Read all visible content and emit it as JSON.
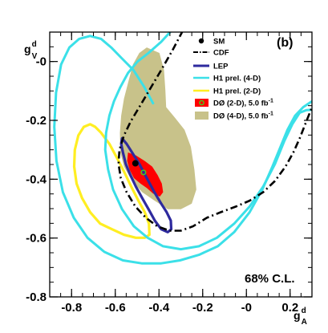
{
  "chart_data": {
    "type": "scatter",
    "panel_label": "(b)",
    "confidence_label": "68% C.L.",
    "x_axis": {
      "label": "g",
      "label_sup": "d",
      "label_sub": "A",
      "range": [
        -0.9,
        0.3
      ],
      "ticks": [
        -0.8,
        -0.6,
        -0.4,
        -0.2,
        0,
        0.2
      ],
      "tick_labels": [
        "-0.8",
        "-0.6",
        "-0.4",
        "-0.2",
        "-0",
        "0.2"
      ]
    },
    "y_axis": {
      "label": "g",
      "label_sup": "d",
      "label_sub": "V",
      "range": [
        -0.8,
        0.1
      ],
      "ticks": [
        -0.8,
        -0.6,
        -0.4,
        -0.2,
        0
      ],
      "tick_labels": [
        "-0.8",
        "-0.6",
        "-0.4",
        "-0.2",
        "-0"
      ]
    },
    "legend": {
      "placement": "top-right",
      "items": [
        {
          "key": "sm",
          "label": "SM",
          "superscript": ""
        },
        {
          "key": "cdf",
          "label": "CDF",
          "superscript": ""
        },
        {
          "key": "lep",
          "label": "LEP",
          "superscript": ""
        },
        {
          "key": "h1_4d",
          "label": "H1 prel. (4-D)",
          "superscript": ""
        },
        {
          "key": "h1_2d",
          "label": "H1 prel. (2-D)",
          "superscript": ""
        },
        {
          "key": "d0_2d",
          "label": "DØ (2-D), 5.0 fb",
          "superscript": "-1"
        },
        {
          "key": "d0_4d",
          "label": "DØ (4-D), 5.0 fb",
          "superscript": "-1"
        }
      ]
    },
    "colors": {
      "sm": "#000000",
      "cdf": "#000000",
      "lep": "#2e2a9e",
      "h1_4d": "#3be0e8",
      "h1_2d": "#ffee22",
      "d0_2d": "#ff0000",
      "d0_4d": "#c8c28a",
      "best_fit_marker": "#44cc22"
    },
    "series": [
      {
        "key": "d0_4d",
        "style": "filled-region",
        "points": [
          [
            -0.456,
            0.048
          ],
          [
            -0.398,
            0.029
          ],
          [
            -0.377,
            -0.029
          ],
          [
            -0.371,
            -0.097
          ],
          [
            -0.367,
            -0.155
          ],
          [
            -0.325,
            -0.193
          ],
          [
            -0.283,
            -0.232
          ],
          [
            -0.254,
            -0.29
          ],
          [
            -0.238,
            -0.367
          ],
          [
            -0.229,
            -0.435
          ],
          [
            -0.25,
            -0.483
          ],
          [
            -0.3,
            -0.502
          ],
          [
            -0.36,
            -0.502
          ],
          [
            -0.42,
            -0.473
          ],
          [
            -0.477,
            -0.444
          ],
          [
            -0.523,
            -0.406
          ],
          [
            -0.56,
            -0.357
          ],
          [
            -0.577,
            -0.309
          ],
          [
            -0.579,
            -0.242
          ],
          [
            -0.573,
            -0.184
          ],
          [
            -0.56,
            -0.126
          ],
          [
            -0.54,
            -0.068
          ],
          [
            -0.519,
            -0.01
          ],
          [
            -0.49,
            0.029
          ]
        ]
      },
      {
        "key": "d0_2d",
        "style": "filled-region",
        "points": [
          [
            -0.542,
            -0.309
          ],
          [
            -0.506,
            -0.319
          ],
          [
            -0.465,
            -0.338
          ],
          [
            -0.431,
            -0.357
          ],
          [
            -0.406,
            -0.386
          ],
          [
            -0.387,
            -0.415
          ],
          [
            -0.381,
            -0.444
          ],
          [
            -0.396,
            -0.459
          ],
          [
            -0.427,
            -0.449
          ],
          [
            -0.456,
            -0.43
          ],
          [
            -0.485,
            -0.415
          ],
          [
            -0.515,
            -0.396
          ],
          [
            -0.535,
            -0.367
          ],
          [
            -0.546,
            -0.338
          ]
        ]
      },
      {
        "key": "lep",
        "style": "closed-contour",
        "points": [
          [
            -0.569,
            -0.261
          ],
          [
            -0.548,
            -0.28
          ],
          [
            -0.523,
            -0.309
          ],
          [
            -0.49,
            -0.348
          ],
          [
            -0.456,
            -0.396
          ],
          [
            -0.421,
            -0.444
          ],
          [
            -0.39,
            -0.483
          ],
          [
            -0.365,
            -0.512
          ],
          [
            -0.346,
            -0.541
          ],
          [
            -0.344,
            -0.57
          ],
          [
            -0.36,
            -0.58
          ],
          [
            -0.39,
            -0.57
          ],
          [
            -0.419,
            -0.541
          ],
          [
            -0.448,
            -0.502
          ],
          [
            -0.477,
            -0.464
          ],
          [
            -0.506,
            -0.425
          ],
          [
            -0.531,
            -0.386
          ],
          [
            -0.552,
            -0.348
          ],
          [
            -0.565,
            -0.309
          ],
          [
            -0.573,
            -0.28
          ]
        ]
      },
      {
        "key": "h1_2d",
        "style": "closed-contour",
        "points": [
          [
            -0.692,
            -0.222
          ],
          [
            -0.665,
            -0.242
          ],
          [
            -0.627,
            -0.28
          ],
          [
            -0.592,
            -0.328
          ],
          [
            -0.558,
            -0.377
          ],
          [
            -0.527,
            -0.425
          ],
          [
            -0.494,
            -0.473
          ],
          [
            -0.465,
            -0.512
          ],
          [
            -0.446,
            -0.551
          ],
          [
            -0.444,
            -0.589
          ],
          [
            -0.465,
            -0.599
          ],
          [
            -0.506,
            -0.599
          ],
          [
            -0.56,
            -0.589
          ],
          [
            -0.615,
            -0.57
          ],
          [
            -0.669,
            -0.551
          ],
          [
            -0.715,
            -0.512
          ],
          [
            -0.752,
            -0.464
          ],
          [
            -0.777,
            -0.415
          ],
          [
            -0.788,
            -0.357
          ],
          [
            -0.785,
            -0.3
          ],
          [
            -0.769,
            -0.251
          ],
          [
            -0.744,
            -0.222
          ],
          [
            -0.715,
            -0.213
          ]
        ]
      },
      {
        "key": "h1_4d",
        "style": "open-contour",
        "points": [
          [
            -0.342,
            0.106
          ],
          [
            -0.39,
            0.067
          ],
          [
            -0.448,
            0.029
          ],
          [
            -0.498,
            0.0
          ],
          [
            -0.542,
            -0.039
          ],
          [
            -0.577,
            -0.087
          ],
          [
            -0.606,
            -0.135
          ],
          [
            -0.627,
            -0.184
          ],
          [
            -0.642,
            -0.242
          ],
          [
            -0.646,
            -0.3
          ],
          [
            -0.633,
            -0.367
          ],
          [
            -0.61,
            -0.435
          ],
          [
            -0.569,
            -0.502
          ],
          [
            -0.515,
            -0.56
          ],
          [
            -0.452,
            -0.599
          ],
          [
            -0.381,
            -0.628
          ],
          [
            -0.3,
            -0.638
          ],
          [
            -0.217,
            -0.628
          ],
          [
            -0.135,
            -0.599
          ],
          [
            -0.056,
            -0.551
          ],
          [
            0.015,
            -0.493
          ],
          [
            0.077,
            -0.425
          ],
          [
            0.131,
            -0.348
          ],
          [
            0.173,
            -0.271
          ],
          [
            0.21,
            -0.213
          ],
          [
            0.244,
            -0.174
          ],
          [
            0.275,
            -0.165
          ],
          [
            0.3,
            -0.164
          ]
        ]
      },
      {
        "key": "h1_4d",
        "style": "open-contour",
        "points": [
          [
            0.3,
            -0.135
          ],
          [
            0.26,
            -0.155
          ],
          [
            0.223,
            -0.184
          ],
          [
            0.188,
            -0.232
          ],
          [
            0.156,
            -0.29
          ],
          [
            0.119,
            -0.357
          ],
          [
            0.073,
            -0.435
          ],
          [
            0.015,
            -0.512
          ],
          [
            -0.056,
            -0.58
          ],
          [
            -0.131,
            -0.628
          ],
          [
            -0.217,
            -0.657
          ],
          [
            -0.304,
            -0.676
          ],
          [
            -0.39,
            -0.686
          ],
          [
            -0.479,
            -0.686
          ],
          [
            -0.565,
            -0.676
          ],
          [
            -0.65,
            -0.647
          ],
          [
            -0.727,
            -0.599
          ],
          [
            -0.79,
            -0.531
          ],
          [
            -0.84,
            -0.444
          ],
          [
            -0.869,
            -0.338
          ],
          [
            -0.879,
            -0.222
          ],
          [
            -0.871,
            -0.106
          ],
          [
            -0.848,
            -0.01
          ],
          [
            -0.81,
            0.048
          ],
          [
            -0.765,
            0.077
          ],
          [
            -0.715,
            0.087
          ],
          [
            -0.665,
            0.077
          ],
          [
            -0.619,
            0.048
          ],
          [
            -0.569,
            0.01
          ],
          [
            -0.517,
            -0.029
          ],
          [
            -0.467,
            -0.087
          ],
          [
            -0.425,
            -0.145
          ]
        ]
      },
      {
        "key": "cdf",
        "style": "dash-dot-line",
        "points": [
          [
            -0.29,
            0.106
          ],
          [
            -0.338,
            0.038
          ],
          [
            -0.39,
            -0.029
          ],
          [
            -0.444,
            -0.097
          ],
          [
            -0.49,
            -0.155
          ],
          [
            -0.529,
            -0.203
          ],
          [
            -0.56,
            -0.251
          ],
          [
            -0.581,
            -0.3
          ],
          [
            -0.585,
            -0.348
          ],
          [
            -0.575,
            -0.396
          ],
          [
            -0.548,
            -0.444
          ],
          [
            -0.508,
            -0.493
          ],
          [
            -0.46,
            -0.531
          ],
          [
            -0.408,
            -0.56
          ],
          [
            -0.352,
            -0.575
          ],
          [
            -0.3,
            -0.575
          ],
          [
            -0.244,
            -0.56
          ],
          [
            -0.181,
            -0.531
          ],
          [
            -0.117,
            -0.512
          ],
          [
            -0.048,
            -0.493
          ],
          [
            0.015,
            -0.473
          ],
          [
            0.077,
            -0.444
          ],
          [
            0.131,
            -0.406
          ],
          [
            0.179,
            -0.357
          ],
          [
            0.215,
            -0.309
          ],
          [
            0.244,
            -0.261
          ],
          [
            0.269,
            -0.213
          ],
          [
            0.29,
            -0.174
          ],
          [
            0.3,
            -0.155
          ]
        ]
      },
      {
        "key": "sm",
        "style": "point",
        "points": [
          [
            -0.508,
            -0.346
          ]
        ]
      },
      {
        "key": "best_fit_marker",
        "style": "point-marker",
        "points": [
          [
            -0.471,
            -0.377
          ]
        ]
      }
    ]
  }
}
